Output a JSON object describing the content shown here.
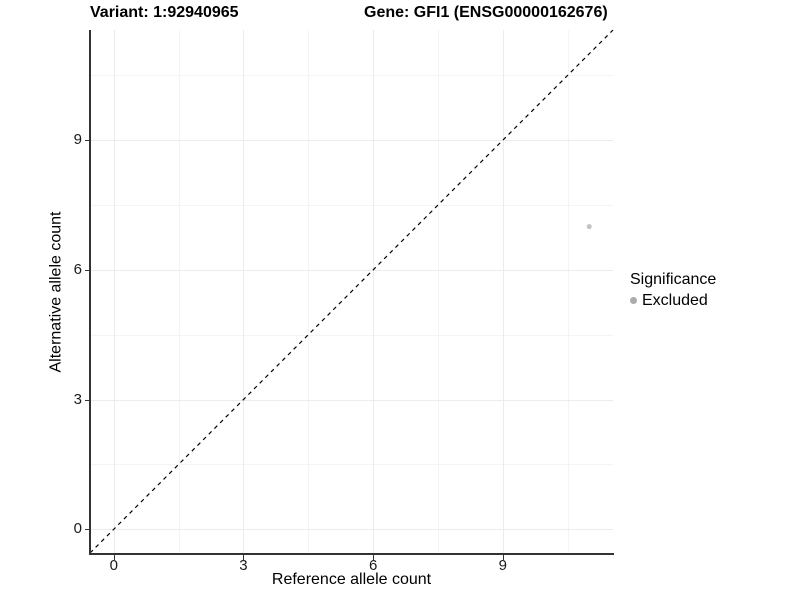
{
  "chart_data": {
    "type": "scatter",
    "title_variant": "Variant: 1:92940965",
    "title_gene": "Gene: GFI1 (ENSG00000162676)",
    "xlabel": "Reference allele count",
    "ylabel": "Alternative allele count",
    "xlim": [
      -0.55,
      11.55
    ],
    "ylim": [
      -0.55,
      11.55
    ],
    "xticks": [
      0,
      3,
      6,
      9
    ],
    "yticks": [
      0,
      3,
      6,
      9
    ],
    "minor_ticks": [
      1.5,
      4.5,
      7.5,
      10.5
    ],
    "grid": true,
    "identity_line": {
      "style": "dashed",
      "color": "#000000",
      "from": [
        -0.55,
        -0.55
      ],
      "to": [
        11.55,
        11.55
      ]
    },
    "series": [
      {
        "name": "Excluded",
        "color": "#c2c2c2",
        "point_radius": 2.5,
        "points": [
          {
            "x": 11,
            "y": 7
          }
        ]
      }
    ],
    "legend": {
      "title": "Significance",
      "position": "right",
      "items": [
        {
          "label": "Excluded",
          "color": "#ababab"
        }
      ]
    }
  },
  "colors": {
    "axis": "#333333",
    "grid_major": "#ececec",
    "grid_minor": "#f4f4f4",
    "background": "#ffffff"
  }
}
